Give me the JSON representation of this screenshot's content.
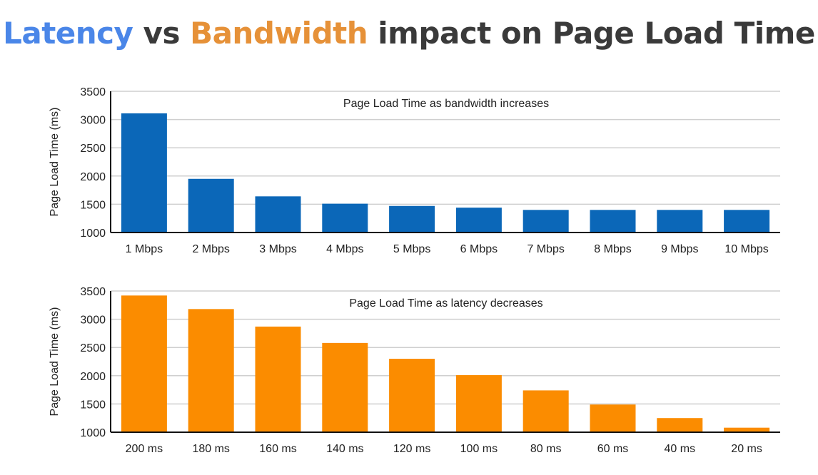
{
  "title": {
    "word1": "Latency",
    "word2": " vs ",
    "word3": "Bandwidth",
    "word4": " impact on Page Load Time",
    "colors": {
      "latency": "#4a86e8",
      "bandwidth": "#e69138",
      "rest": "#3a3a3a"
    }
  },
  "chart_data": [
    {
      "type": "bar",
      "title": "Page Load Time as bandwidth increases",
      "xlabel": "",
      "ylabel": "Page Load Time (ms)",
      "categories": [
        "1 Mbps",
        "2 Mbps",
        "3 Mbps",
        "4 Mbps",
        "5 Mbps",
        "6 Mbps",
        "7 Mbps",
        "8 Mbps",
        "9 Mbps",
        "10 Mbps"
      ],
      "values": [
        3110,
        1950,
        1640,
        1510,
        1470,
        1440,
        1400,
        1400,
        1400,
        1400
      ],
      "ylim": [
        1000,
        3500
      ],
      "yticks": [
        "1000",
        "1500",
        "2000",
        "2500",
        "3000",
        "3500"
      ],
      "color": "#0b67b8",
      "grid": true
    },
    {
      "type": "bar",
      "title": "Page Load Time as latency decreases",
      "xlabel": "",
      "ylabel": "Page Load Time (ms)",
      "categories": [
        "200 ms",
        "180 ms",
        "160 ms",
        "140 ms",
        "120 ms",
        "100 ms",
        "80 ms",
        "60 ms",
        "40 ms",
        "20 ms"
      ],
      "values": [
        3420,
        3180,
        2870,
        2580,
        2300,
        2010,
        1740,
        1490,
        1250,
        1080
      ],
      "ylim": [
        1000,
        3500
      ],
      "yticks": [
        "1000",
        "1500",
        "2000",
        "2500",
        "3000",
        "3500"
      ],
      "color": "#fb8c00",
      "grid": true
    }
  ]
}
